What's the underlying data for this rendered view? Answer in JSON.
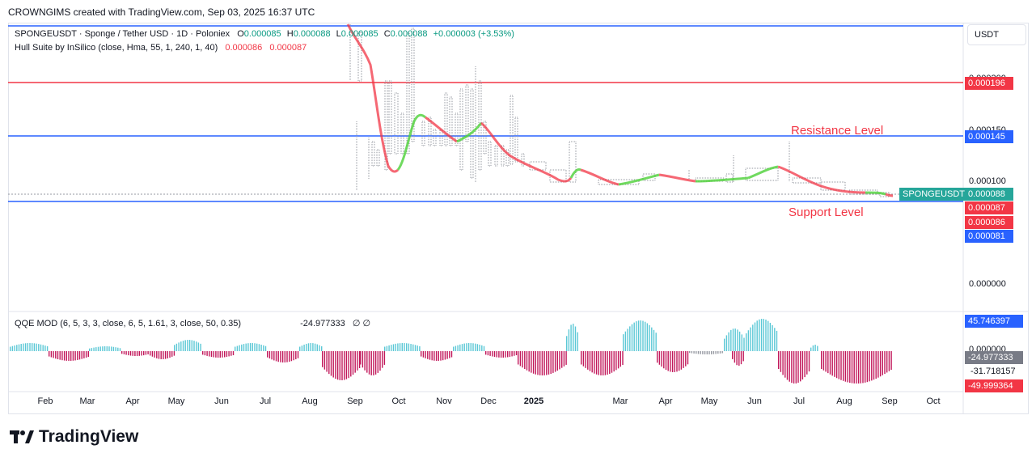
{
  "header": "CROWNGIMS created with TradingView.com, Sep 03, 2025 16:37 UTC",
  "symbol_legend": {
    "title": "SPONGEUSDT · Sponge / Tether USD · 1D · Poloniex",
    "o_label": "O",
    "o_value": "0.000085",
    "h_label": "H",
    "h_value": "0.000088",
    "l_label": "L",
    "l_value": "0.000085",
    "c_label": "C",
    "c_value": "0.000088",
    "change": "+0.000003 (+3.53%)"
  },
  "hull_legend": {
    "title": "Hull Suite by InSilico (close, Hma, 55, 1, 240, 1, 40)",
    "v1": "0.000086",
    "v2": "0.000087"
  },
  "qqe_legend": {
    "title": "QQE MOD (6, 5, 3, 3, close, 6, 5, 1.61, 3, close, 50, 0.35)",
    "value": "-24.977333",
    "icons": "∅ ∅"
  },
  "annotations": {
    "resistance": "Resistance Level",
    "support": "Support Level"
  },
  "price_axis": {
    "currency": "USDT",
    "ticks": [
      "0.000200",
      "0.000150",
      "0.000100",
      "0.000000"
    ],
    "tags": [
      {
        "label": "0.000196",
        "color": "#f23645"
      },
      {
        "label": "0.000145",
        "color": "#2962ff"
      },
      {
        "symbol": "SPONGEUSDT",
        "label": "0.000088",
        "color": "#26a69a"
      },
      {
        "label": "0.000087",
        "color": "#f23645"
      },
      {
        "label": "0.000086",
        "color": "#f23645"
      },
      {
        "label": "0.000081",
        "color": "#2962ff"
      }
    ]
  },
  "qqe_axis": {
    "ticks": [
      "0.000000",
      "-31.718157"
    ],
    "tags": [
      {
        "label": "45.746397",
        "color": "#2962ff"
      },
      {
        "label": "-24.977333",
        "color": "#787b86"
      },
      {
        "label": "-49.999364",
        "color": "#f23645"
      }
    ]
  },
  "time_axis": [
    "Feb",
    "Mar",
    "Apr",
    "May",
    "Jun",
    "Jul",
    "Aug",
    "Sep",
    "Oct",
    "Nov",
    "Dec",
    "2025",
    "Mar",
    "Apr",
    "May",
    "Jun",
    "Jul",
    "Aug",
    "Sep",
    "Oct"
  ],
  "levels": {
    "top_line": {
      "color": "#2962ff"
    },
    "red_line": {
      "value": 0.000196,
      "color": "#f23645"
    },
    "resistance_line": {
      "value": 0.000145,
      "color": "#2962ff"
    },
    "support_line": {
      "value": 8.1e-05,
      "color": "#2962ff"
    }
  },
  "logo": "TradingView"
}
